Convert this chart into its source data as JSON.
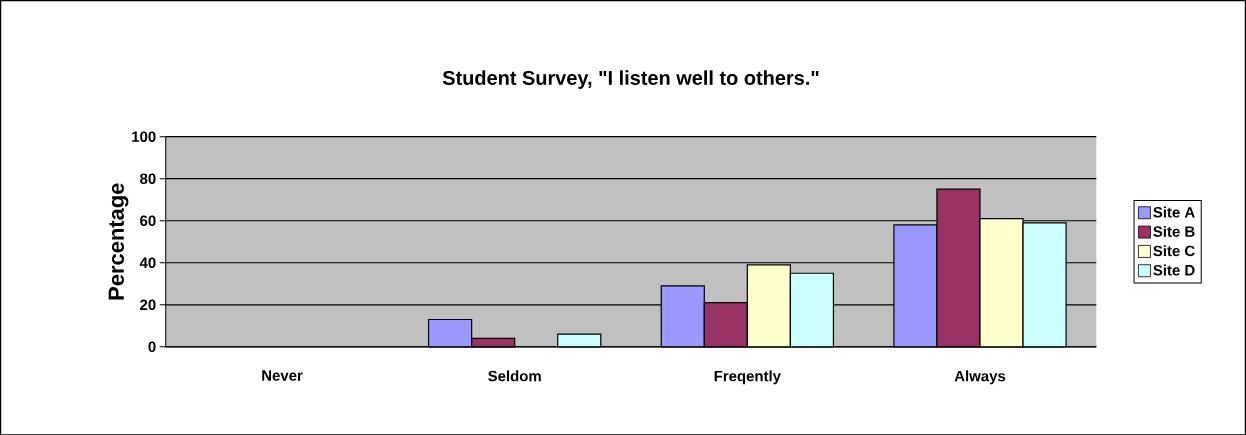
{
  "chart_data": {
    "type": "bar",
    "title": "Student Survey, \"I listen well to others.\"",
    "ylabel": "Percentage",
    "categories": [
      "Never",
      "Seldom",
      "Freqently",
      "Always"
    ],
    "series": [
      {
        "name": "Site A",
        "color": "#9999ff",
        "values": [
          0,
          13,
          29,
          58
        ]
      },
      {
        "name": "Site B",
        "color": "#993366",
        "values": [
          0,
          4,
          21,
          75
        ]
      },
      {
        "name": "Site C",
        "color": "#ffffcc",
        "values": [
          0,
          0,
          39,
          61
        ]
      },
      {
        "name": "Site D",
        "color": "#ccffff",
        "values": [
          0,
          6,
          35,
          59
        ]
      }
    ],
    "ylim": [
      0,
      100
    ],
    "yticks": [
      0,
      20,
      40,
      60,
      80,
      100
    ],
    "grid": "y",
    "legend": "right"
  }
}
